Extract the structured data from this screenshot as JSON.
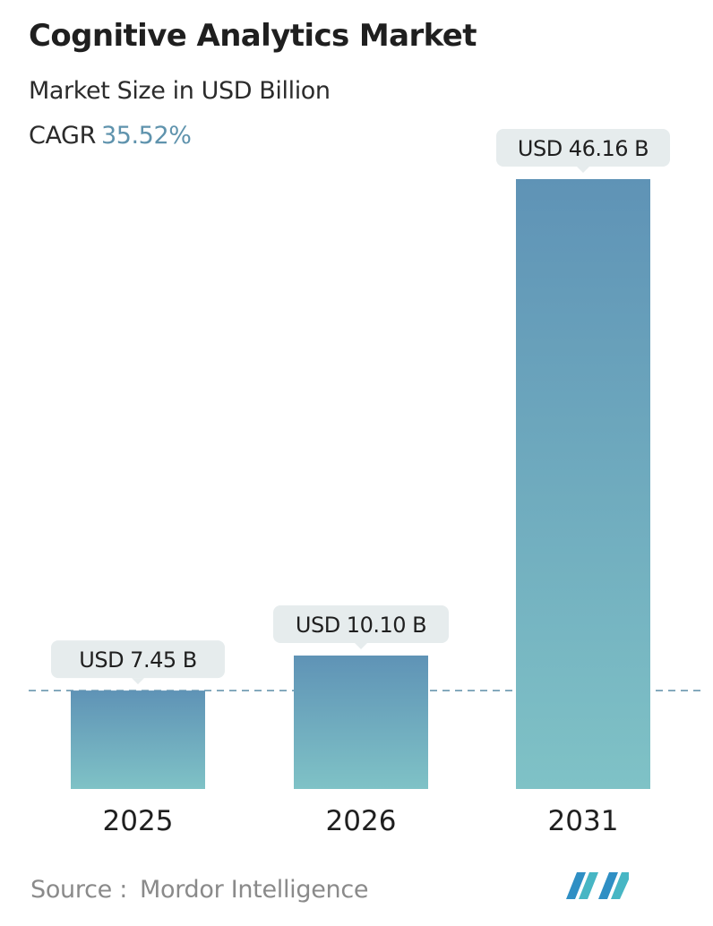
{
  "header": {
    "title": "Cognitive Analytics Market",
    "subtitle": "Market Size in USD Billion",
    "cagr_label": "CAGR",
    "cagr_value": "35.52%"
  },
  "chart_data": {
    "type": "bar",
    "title": "Cognitive Analytics Market",
    "subtitle": "Market Size in USD Billion",
    "categories": [
      "2025",
      "2026",
      "2031"
    ],
    "values": [
      7.45,
      10.1,
      46.16
    ],
    "data_labels": [
      "USD 7.45 B",
      "USD 10.10 B",
      "USD 46.16 B"
    ],
    "unit": "USD Billion",
    "grid": false,
    "reference_line": "dashed at 2025 value",
    "colors": {
      "bar_top": "#5f93b6",
      "bar_bottom": "#7fc2c6",
      "label_bg": "#e6eced",
      "reference_line": "#5d8fa8"
    }
  },
  "footer": {
    "source_label": "Source :",
    "source_value": "Mordor Intelligence",
    "logo_name": "mordor-intelligence-logo"
  }
}
